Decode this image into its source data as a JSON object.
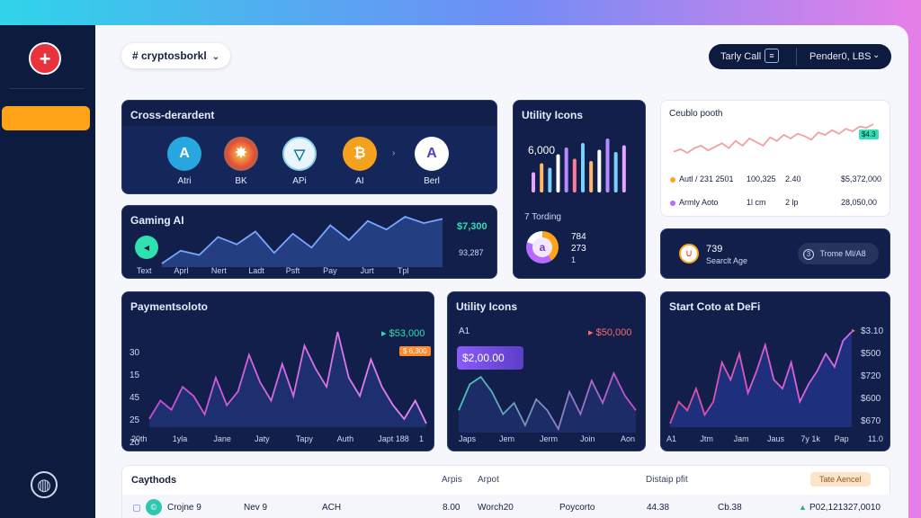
{
  "topbar": {
    "channel": "# cryptosborkl",
    "call_label": "Tarly Call",
    "pender_label": "Pender0, LBS"
  },
  "crypto_card": {
    "title": "Cross-derardent",
    "coins": [
      {
        "symbol": "A",
        "label": "Atri",
        "color": "#27a6e0"
      },
      {
        "symbol": "✸",
        "label": "BK",
        "color": "#e74c3c"
      },
      {
        "symbol": "▽",
        "label": "APi",
        "color": "#0e7c8f"
      },
      {
        "symbol": "₿",
        "label": "AI",
        "color": "#f4a21d"
      },
      {
        "symbol": "A",
        "label": "Berl",
        "color": "#ffffff"
      }
    ],
    "arrow": "›"
  },
  "gaming_card": {
    "title": "Gaming AI",
    "value_green": "$7,300",
    "value_sub": "93,287",
    "x_labels": [
      "Text",
      "Aprl",
      "Nert",
      "Ladt",
      "Psft",
      "Pay",
      "Jurt",
      "Tpl"
    ],
    "chart_data": {
      "type": "area",
      "series": [
        {
          "values": [
            30,
            42,
            38,
            55,
            48,
            60,
            40,
            58,
            45,
            66,
            52,
            70,
            62,
            74,
            68,
            72
          ]
        }
      ]
    }
  },
  "utility_bars": {
    "title": "Utility Icons",
    "value": "6,000",
    "sub_title": "7 Tording",
    "stat_a": "784",
    "stat_b": "273",
    "stat_c": "1",
    "chart_data": {
      "type": "bar",
      "values": [
        18,
        26,
        22,
        34,
        40,
        30,
        44,
        28,
        38,
        48,
        36,
        42
      ],
      "colors": [
        "#e8a2ff",
        "#ffb86b",
        "#7ad0ff",
        "#ffffff",
        "#b58bff",
        "#ff7c9c",
        "#7ad0ff",
        "#ffb86b",
        "#ffffff",
        "#b58bff",
        "#7ad0ff",
        "#e8a2ff"
      ]
    }
  },
  "growth_card": {
    "title": "Ceublo pooth",
    "badge": "$4.3",
    "rows": [
      {
        "name": "Autl / 231 2501",
        "a": "100,325",
        "b": "2.40",
        "c": "$5,372,000",
        "color": "#ffa319"
      },
      {
        "name": "Armly Aoto",
        "a": "1l cm",
        "b": "2 lp",
        "c": "28,050,00",
        "color": "#b56bff"
      }
    ],
    "chart_data": {
      "type": "line",
      "series": [
        {
          "values": [
            20,
            24,
            18,
            26,
            30,
            22,
            28,
            34,
            26,
            38,
            30,
            42,
            36,
            30,
            44,
            38,
            48,
            42,
            50,
            46,
            40,
            52,
            48,
            56,
            50,
            58,
            54,
            62,
            60,
            66
          ]
        }
      ]
    }
  },
  "stat_card": {
    "value": "739",
    "label": "Searclt Age",
    "pill": "Trome Ml/A8"
  },
  "payments_card": {
    "title": "Paymentsoloto",
    "value_green": "$53,000",
    "badge": "$ 6,300",
    "y_labels": [
      "30",
      "15",
      "45",
      "25",
      "20"
    ],
    "x_labels": [
      "20th",
      "1yla",
      "Jane",
      "Jaty",
      "Tapy",
      "Auth",
      "Japt 188",
      "1"
    ],
    "chart_data": {
      "type": "line",
      "series": [
        {
          "values": [
            20,
            28,
            24,
            34,
            30,
            22,
            38,
            26,
            32,
            48,
            36,
            28,
            44,
            30,
            52,
            42,
            34,
            58,
            38,
            30,
            46,
            34,
            26,
            20,
            28,
            18
          ]
        }
      ]
    }
  },
  "utility_line": {
    "title": "Utility Icons",
    "left_label": "A1",
    "value_red": "$50,000",
    "highlight": "$2,00.00",
    "x_labels": [
      "Japs",
      "Jem",
      "Jerm",
      "Join",
      "Aon"
    ],
    "chart_data": {
      "type": "line",
      "series": [
        {
          "values": [
            30,
            44,
            48,
            40,
            28,
            34,
            22,
            36,
            30,
            20,
            40,
            28,
            46,
            34,
            50,
            38,
            30
          ]
        }
      ]
    }
  },
  "defi_card": {
    "title": "Start Coto at DeFi",
    "y_labels": [
      "$3.10",
      "$500",
      "$720",
      "$600",
      "$670"
    ],
    "x_labels": [
      "A1",
      "Jtm",
      "Jam",
      "Jaus",
      "7y 1k",
      "Pap",
      "11.0"
    ],
    "chart_data": {
      "type": "line",
      "series": [
        {
          "values": [
            20,
            30,
            26,
            36,
            24,
            30,
            48,
            40,
            52,
            34,
            44,
            56,
            40,
            36,
            48,
            30,
            38,
            44,
            52,
            46,
            58,
            62
          ]
        }
      ]
    }
  },
  "table": {
    "title": "Caythods",
    "headers": [
      "Arpis",
      "Arpot",
      "Distaip pfit"
    ],
    "tag": "Tate Aencel",
    "row": {
      "name": "Crojne 9",
      "date": "Nev 9",
      "method": "ACH",
      "amount": "8.00",
      "ref": "Worch20",
      "dest": "Poycorto",
      "v1": "44.38",
      "v2": "Cb.38",
      "total": "P02,121327,0010"
    }
  }
}
